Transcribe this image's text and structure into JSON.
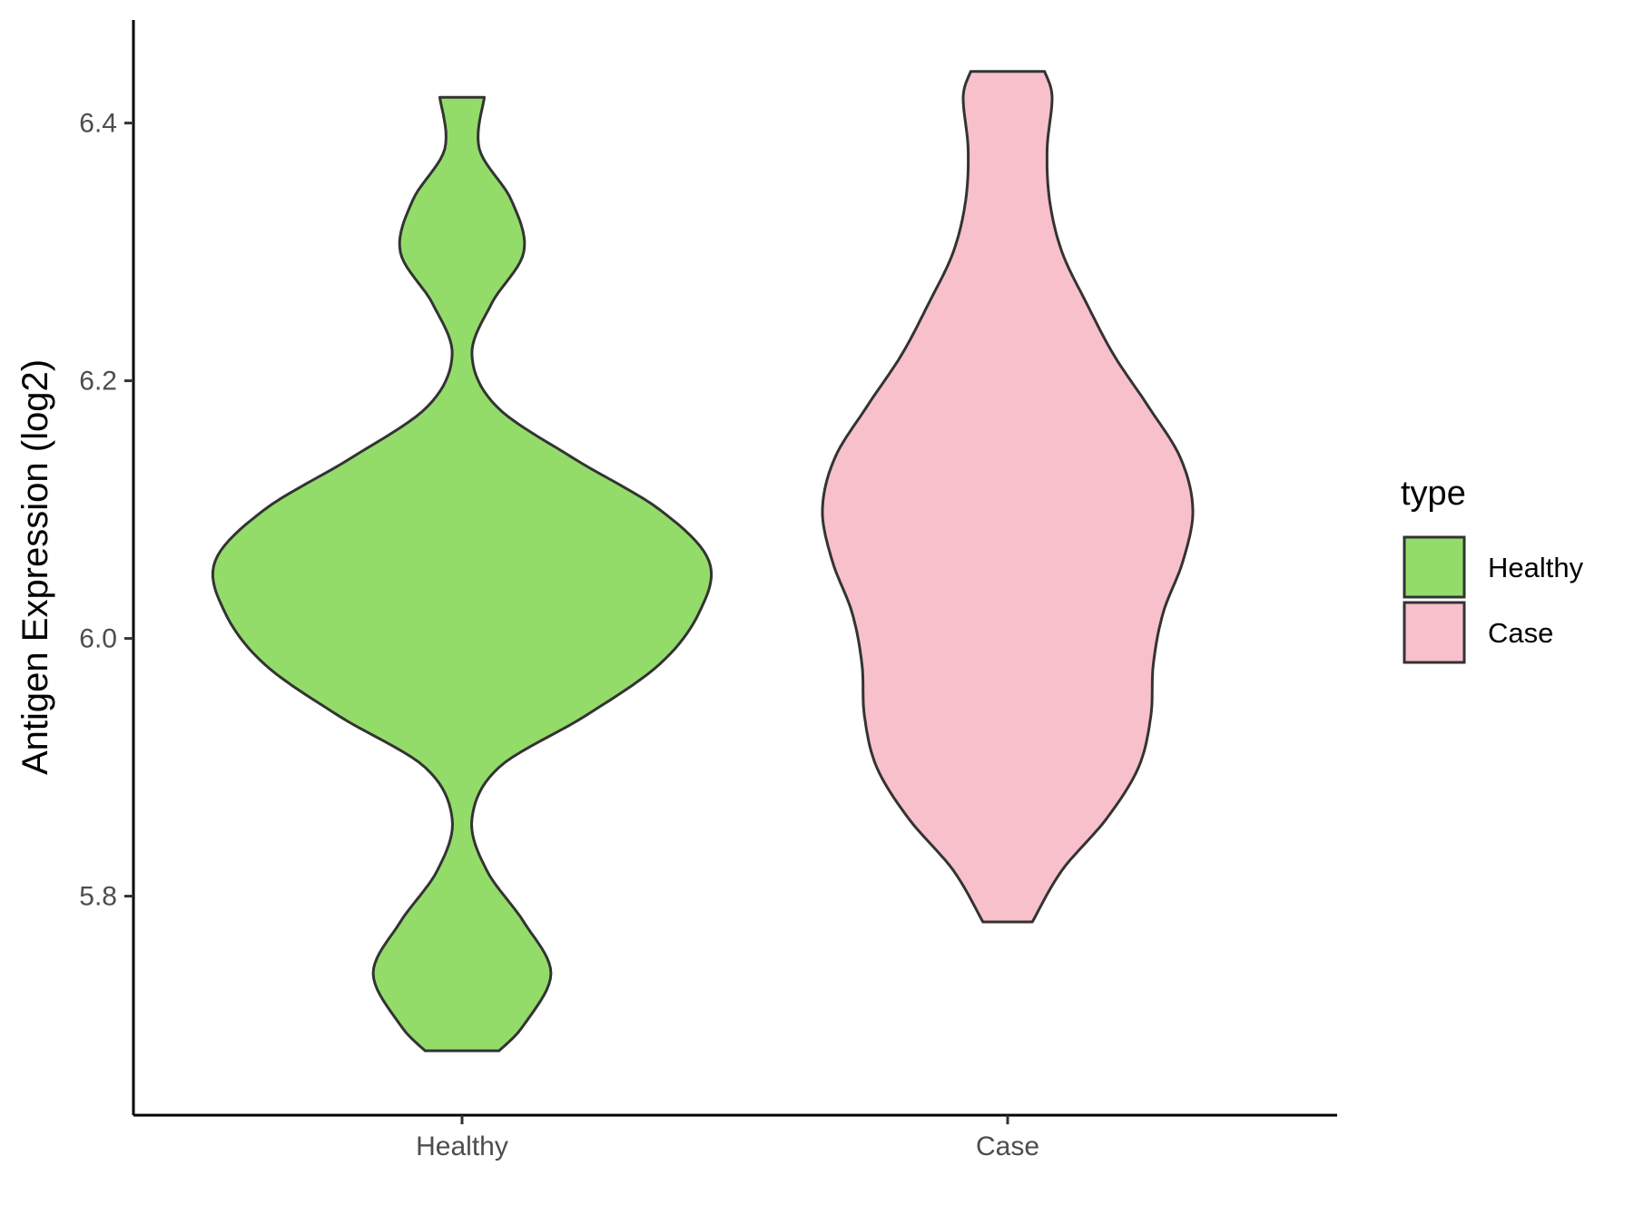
{
  "chart_data": {
    "type": "violin",
    "title": "",
    "xlabel": "",
    "ylabel": "Antigen Expression (log2)",
    "categories": [
      "Healthy",
      "Case"
    ],
    "ylim": [
      5.63,
      6.48
    ],
    "yticks": [
      5.8,
      6.0,
      6.2,
      6.4
    ],
    "ytick_labels": [
      "5.8",
      "6.0",
      "6.2",
      "6.4"
    ],
    "grid": false,
    "legend": {
      "title": "type",
      "position": "right",
      "entries": [
        "Healthy",
        "Case"
      ]
    },
    "series": [
      {
        "name": "Healthy",
        "color": "#93DC6A",
        "min": 5.68,
        "max": 6.42,
        "density_profile": [
          [
            5.68,
            0.15
          ],
          [
            5.7,
            0.25
          ],
          [
            5.74,
            0.36
          ],
          [
            5.78,
            0.25
          ],
          [
            5.82,
            0.1
          ],
          [
            5.86,
            0.04
          ],
          [
            5.9,
            0.15
          ],
          [
            5.94,
            0.5
          ],
          [
            5.98,
            0.8
          ],
          [
            6.02,
            0.96
          ],
          [
            6.06,
            1.0
          ],
          [
            6.1,
            0.8
          ],
          [
            6.14,
            0.45
          ],
          [
            6.18,
            0.14
          ],
          [
            6.22,
            0.04
          ],
          [
            6.26,
            0.12
          ],
          [
            6.3,
            0.25
          ],
          [
            6.34,
            0.2
          ],
          [
            6.38,
            0.07
          ],
          [
            6.42,
            0.09
          ]
        ]
      },
      {
        "name": "Case",
        "color": "#F8C0CB",
        "min": 5.78,
        "max": 6.44,
        "density_profile": [
          [
            5.78,
            0.1
          ],
          [
            5.82,
            0.22
          ],
          [
            5.86,
            0.4
          ],
          [
            5.9,
            0.53
          ],
          [
            5.94,
            0.58
          ],
          [
            5.98,
            0.59
          ],
          [
            6.02,
            0.63
          ],
          [
            6.06,
            0.71
          ],
          [
            6.1,
            0.75
          ],
          [
            6.14,
            0.7
          ],
          [
            6.18,
            0.57
          ],
          [
            6.22,
            0.43
          ],
          [
            6.26,
            0.32
          ],
          [
            6.3,
            0.22
          ],
          [
            6.34,
            0.17
          ],
          [
            6.38,
            0.16
          ],
          [
            6.42,
            0.18
          ],
          [
            6.44,
            0.15
          ]
        ]
      }
    ]
  }
}
